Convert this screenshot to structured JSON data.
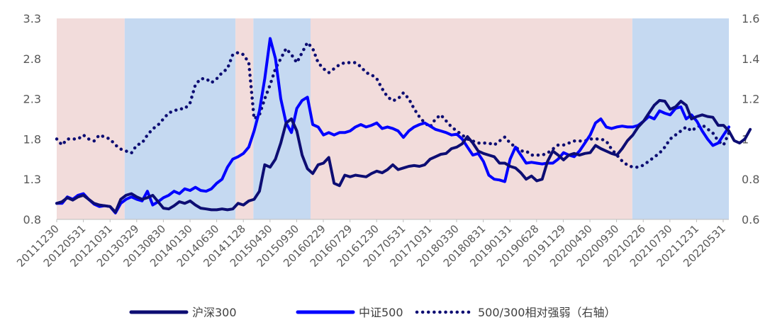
{
  "chart_data": {
    "type": "line",
    "title": "",
    "xlabel": "",
    "ylabel": "",
    "ylim_left": [
      0.8,
      3.3
    ],
    "ylim_right": [
      0.6,
      1.6
    ],
    "yticks_left": [
      "0.8",
      "1.3",
      "1.8",
      "2.3",
      "2.8",
      "3.3"
    ],
    "yticks_right": [
      "0.6",
      "0.8",
      "1",
      "1.2",
      "1.4",
      "1.6"
    ],
    "x_tick_labels": [
      "20111230",
      "20120531",
      "20121031",
      "20130329",
      "20130830",
      "20140130",
      "20140630",
      "20141128",
      "20150430",
      "20150930",
      "20160229",
      "20160729",
      "20161230",
      "20170531",
      "20171031",
      "20180330",
      "20180831",
      "20190131",
      "20190628",
      "20191129",
      "20200430",
      "20200930",
      "20210226",
      "20210730",
      "20211231",
      "20220531"
    ],
    "n_points": 127,
    "shading": [
      {
        "start": 0,
        "end": 19,
        "color": "#f2dcdb"
      },
      {
        "start": 19,
        "end": 50,
        "color": "#c5d9f1"
      },
      {
        "start": 50,
        "end": 55,
        "color": "#f2dcdb"
      },
      {
        "start": 55,
        "end": 71,
        "color": "#c5d9f1"
      },
      {
        "start": 71,
        "end": 161,
        "color": "#f2dcdb"
      },
      {
        "start": 161,
        "end": 188,
        "color": "#c5d9f1"
      }
    ],
    "series": [
      {
        "name": "沪深300",
        "axis": "left",
        "color": "#0d0d73",
        "style": "solid",
        "values": [
          1.0,
          1.02,
          1.07,
          1.04,
          1.08,
          1.1,
          1.05,
          1.0,
          0.98,
          0.97,
          0.96,
          0.89,
          1.05,
          1.1,
          1.12,
          1.08,
          1.05,
          1.07,
          1.1,
          1.02,
          0.94,
          0.93,
          0.97,
          1.02,
          1.0,
          1.03,
          0.98,
          0.94,
          0.93,
          0.92,
          0.92,
          0.93,
          0.92,
          0.93,
          1.0,
          0.98,
          1.03,
          1.05,
          1.15,
          1.48,
          1.45,
          1.55,
          1.75,
          2.0,
          2.05,
          1.9,
          1.6,
          1.43,
          1.37,
          1.48,
          1.5,
          1.57,
          1.25,
          1.22,
          1.35,
          1.33,
          1.35,
          1.34,
          1.33,
          1.37,
          1.4,
          1.38,
          1.42,
          1.48,
          1.42,
          1.44,
          1.46,
          1.47,
          1.46,
          1.48,
          1.55,
          1.58,
          1.61,
          1.62,
          1.68,
          1.7,
          1.74,
          1.83,
          1.75,
          1.65,
          1.62,
          1.6,
          1.58,
          1.5,
          1.5,
          1.46,
          1.44,
          1.38,
          1.3,
          1.34,
          1.28,
          1.3,
          1.52,
          1.65,
          1.6,
          1.54,
          1.6,
          1.62,
          1.6,
          1.62,
          1.63,
          1.72,
          1.68,
          1.65,
          1.62,
          1.6,
          1.68,
          1.78,
          1.85,
          1.95,
          2.02,
          2.12,
          2.22,
          2.28,
          2.27,
          2.17,
          2.2,
          2.27,
          2.22,
          2.05,
          2.08,
          2.1,
          2.08,
          2.07,
          1.97,
          1.97,
          1.9,
          1.78,
          1.75,
          1.8,
          1.92
        ]
      },
      {
        "name": "中证500",
        "axis": "left",
        "color": "#0000ff",
        "style": "solid",
        "values": [
          1.0,
          1.0,
          1.08,
          1.05,
          1.1,
          1.12,
          1.05,
          0.99,
          0.96,
          0.97,
          0.96,
          0.88,
          1.0,
          1.05,
          1.08,
          1.05,
          1.03,
          1.15,
          0.98,
          1.02,
          1.07,
          1.1,
          1.15,
          1.12,
          1.18,
          1.16,
          1.2,
          1.16,
          1.15,
          1.18,
          1.25,
          1.3,
          1.45,
          1.55,
          1.58,
          1.62,
          1.7,
          1.9,
          2.15,
          2.55,
          3.05,
          2.8,
          2.3,
          2.0,
          1.88,
          2.18,
          2.28,
          2.32,
          1.98,
          1.95,
          1.85,
          1.88,
          1.85,
          1.88,
          1.88,
          1.9,
          1.95,
          1.98,
          1.95,
          1.97,
          2.0,
          1.93,
          1.95,
          1.93,
          1.9,
          1.82,
          1.9,
          1.95,
          1.98,
          2.0,
          1.96,
          1.92,
          1.9,
          1.88,
          1.85,
          1.86,
          1.8,
          1.7,
          1.6,
          1.62,
          1.52,
          1.35,
          1.3,
          1.29,
          1.27,
          1.55,
          1.7,
          1.6,
          1.5,
          1.51,
          1.5,
          1.49,
          1.5,
          1.5,
          1.55,
          1.63,
          1.6,
          1.58,
          1.65,
          1.75,
          1.85,
          2.0,
          2.05,
          1.95,
          1.93,
          1.95,
          1.96,
          1.95,
          1.95,
          1.97,
          2.02,
          2.08,
          2.05,
          2.15,
          2.12,
          2.1,
          2.18,
          2.2,
          2.05,
          2.1,
          2.02,
          1.9,
          1.8,
          1.72,
          1.75,
          1.85,
          1.95
        ]
      },
      {
        "name": "500/300相对强弱（右轴）",
        "axis": "right",
        "color": "#0d0d73",
        "style": "dotted",
        "values": [
          1.0,
          0.97,
          1.0,
          1.0,
          1.0,
          1.02,
          1.0,
          0.99,
          1.02,
          1.01,
          1.0,
          0.97,
          0.95,
          0.94,
          0.93,
          0.97,
          0.98,
          1.02,
          1.05,
          1.07,
          1.1,
          1.13,
          1.14,
          1.15,
          1.15,
          1.18,
          1.27,
          1.3,
          1.3,
          1.28,
          1.3,
          1.33,
          1.35,
          1.42,
          1.43,
          1.42,
          1.38,
          1.1,
          1.12,
          1.2,
          1.27,
          1.35,
          1.4,
          1.45,
          1.42,
          1.38,
          1.43,
          1.48,
          1.45,
          1.38,
          1.35,
          1.33,
          1.35,
          1.37,
          1.38,
          1.38,
          1.38,
          1.36,
          1.33,
          1.32,
          1.3,
          1.25,
          1.21,
          1.19,
          1.2,
          1.23,
          1.2,
          1.15,
          1.11,
          1.08,
          1.06,
          1.1,
          1.12,
          1.09,
          1.06,
          1.04,
          1.02,
          1.0,
          0.99,
          0.98,
          0.98,
          0.98,
          0.97,
          0.99,
          1.01,
          0.98,
          0.96,
          0.94,
          0.94,
          0.92,
          0.92,
          0.92,
          0.93,
          0.95,
          0.97,
          0.97,
          0.98,
          0.99,
          0.99,
          0.99,
          1.0,
          1.0,
          1.0,
          0.99,
          0.95,
          0.92,
          0.89,
          0.87,
          0.86,
          0.86,
          0.87,
          0.89,
          0.91,
          0.93,
          0.96,
          1.0,
          1.02,
          1.04,
          1.06,
          1.04,
          1.06,
          1.07,
          1.05,
          1.03,
          0.99,
          0.97,
          1.03
        ]
      }
    ],
    "legend": {
      "position": "bottom-center"
    }
  }
}
